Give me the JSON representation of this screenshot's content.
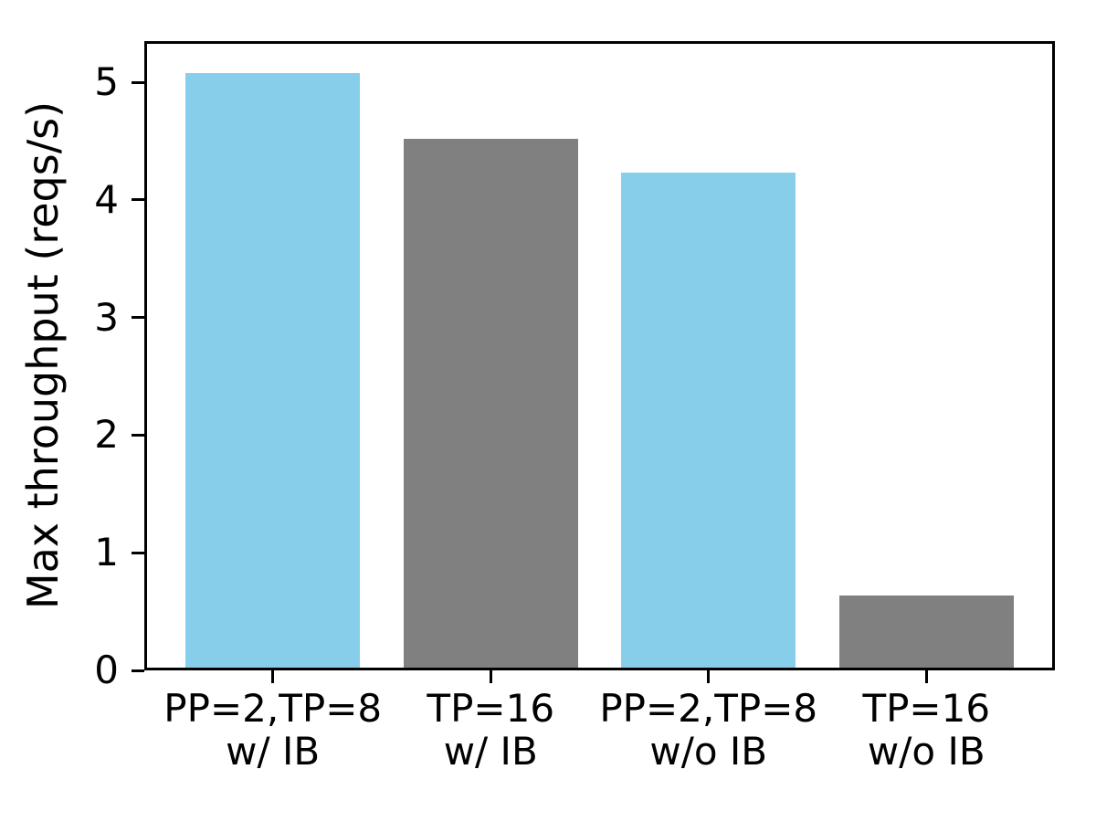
{
  "chart_data": {
    "type": "bar",
    "title": "",
    "xlabel": "",
    "ylabel": "Max throughput (reqs/s)",
    "categories": [
      "PP=2,TP=8\nw/ IB",
      "TP=16\nw/ IB",
      "PP=2,TP=8\nw/o IB",
      "TP=16\nw/o IB"
    ],
    "category_lines": [
      [
        "PP=2,TP=8",
        "w/ IB"
      ],
      [
        "TP=16",
        "w/ IB"
      ],
      [
        "PP=2,TP=8",
        "w/o IB"
      ],
      [
        "TP=16",
        "w/o IB"
      ]
    ],
    "values": [
      5.08,
      4.52,
      4.23,
      0.64
    ],
    "bar_colors": [
      "#87CEEB",
      "#808080",
      "#87CEEB",
      "#808080"
    ],
    "yticks": [
      0,
      1,
      2,
      3,
      4,
      5
    ],
    "ylim": [
      0,
      5.35
    ],
    "xlim": [
      -0.59,
      3.59
    ],
    "bar_width_units": 0.8,
    "grid": false,
    "legend": null,
    "axis_color": "#000000",
    "background": "#ffffff"
  }
}
